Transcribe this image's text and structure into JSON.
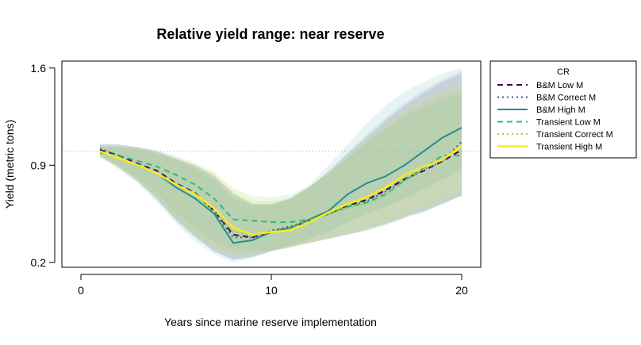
{
  "chart_data": {
    "type": "line",
    "title": "Relative yield range: near reserve",
    "xlabel": "Years since marine reserve implementation",
    "ylabel": "Yield (metric tons)",
    "xlim": [
      -1,
      21
    ],
    "ylim": [
      0.165,
      1.65
    ],
    "xticks": [
      0,
      10,
      20
    ],
    "xtick_labels": [
      "0",
      "10",
      "20"
    ],
    "yticks": [
      0.2,
      0.9,
      1.6
    ],
    "ytick_labels": [
      "0.2",
      "0.9",
      "1.6"
    ],
    "reference_line": {
      "y": 1.0,
      "style": "dotted",
      "color": "#aaaaaa"
    },
    "legend": {
      "title": "CR",
      "position": "outside-right"
    },
    "x": [
      1,
      2,
      3,
      4,
      5,
      6,
      7,
      8,
      9,
      10,
      11,
      12,
      13,
      14,
      15,
      16,
      17,
      18,
      19,
      20
    ],
    "series": [
      {
        "name": "B&M Low M",
        "color": "#440154",
        "dash": "dashed",
        "values": [
          1.01,
          0.97,
          0.91,
          0.86,
          0.77,
          0.7,
          0.57,
          0.4,
          0.38,
          0.42,
          0.45,
          0.5,
          0.55,
          0.61,
          0.65,
          0.72,
          0.8,
          0.86,
          0.93,
          1.01
        ],
        "band_lower": [
          0.97,
          0.88,
          0.78,
          0.65,
          0.5,
          0.38,
          0.28,
          0.22,
          0.24,
          0.28,
          0.31,
          0.34,
          0.37,
          0.4,
          0.43,
          0.47,
          0.52,
          0.56,
          0.62,
          0.68
        ],
        "band_upper": [
          1.05,
          1.05,
          1.03,
          1.0,
          0.95,
          0.9,
          0.83,
          0.7,
          0.62,
          0.62,
          0.66,
          0.74,
          0.85,
          0.98,
          1.1,
          1.22,
          1.33,
          1.42,
          1.5,
          1.56
        ]
      },
      {
        "name": "B&M Correct M",
        "color": "#31688e",
        "dash": "dotted",
        "values": [
          1.02,
          0.97,
          0.91,
          0.86,
          0.77,
          0.7,
          0.56,
          0.38,
          0.38,
          0.43,
          0.46,
          0.5,
          0.55,
          0.6,
          0.64,
          0.71,
          0.79,
          0.87,
          0.93,
          1.07
        ],
        "band_lower": [
          0.98,
          0.89,
          0.79,
          0.66,
          0.51,
          0.39,
          0.28,
          0.22,
          0.24,
          0.28,
          0.31,
          0.34,
          0.37,
          0.4,
          0.44,
          0.48,
          0.53,
          0.57,
          0.62,
          0.68
        ],
        "band_upper": [
          1.06,
          1.05,
          1.03,
          1.0,
          0.95,
          0.9,
          0.82,
          0.69,
          0.62,
          0.62,
          0.66,
          0.74,
          0.86,
          0.99,
          1.12,
          1.24,
          1.35,
          1.44,
          1.52,
          1.58
        ]
      },
      {
        "name": "B&M High M",
        "color": "#21908c",
        "dash": "solid",
        "values": [
          1.0,
          0.95,
          0.9,
          0.84,
          0.74,
          0.66,
          0.55,
          0.34,
          0.36,
          0.42,
          0.45,
          0.51,
          0.57,
          0.69,
          0.77,
          0.82,
          0.9,
          1.0,
          1.1,
          1.17
        ],
        "band_lower": [
          0.96,
          0.87,
          0.77,
          0.63,
          0.48,
          0.35,
          0.26,
          0.2,
          0.23,
          0.28,
          0.32,
          0.37,
          0.42,
          0.49,
          0.55,
          0.6,
          0.66,
          0.73,
          0.8,
          0.86
        ],
        "band_upper": [
          1.04,
          1.03,
          1.02,
          0.99,
          0.94,
          0.88,
          0.8,
          0.66,
          0.61,
          0.61,
          0.66,
          0.76,
          0.9,
          1.05,
          1.2,
          1.33,
          1.43,
          1.5,
          1.56,
          1.6
        ]
      },
      {
        "name": "Transient Low M",
        "color": "#35b779",
        "dash": "dashed",
        "values": [
          0.99,
          0.97,
          0.93,
          0.89,
          0.83,
          0.76,
          0.66,
          0.51,
          0.5,
          0.49,
          0.49,
          0.51,
          0.55,
          0.6,
          0.63,
          0.69,
          0.79,
          0.88,
          0.97,
          0.97
        ],
        "band_lower": [
          0.95,
          0.89,
          0.81,
          0.7,
          0.56,
          0.44,
          0.35,
          0.29,
          0.28,
          0.29,
          0.31,
          0.34,
          0.37,
          0.4,
          0.43,
          0.47,
          0.52,
          0.57,
          0.63,
          0.68
        ],
        "band_upper": [
          1.03,
          1.04,
          1.03,
          1.01,
          0.97,
          0.92,
          0.85,
          0.73,
          0.68,
          0.67,
          0.69,
          0.75,
          0.84,
          0.95,
          1.06,
          1.16,
          1.25,
          1.32,
          1.38,
          1.42
        ]
      },
      {
        "name": "Transient Correct M",
        "color": "#8fd744",
        "dash": "dotted",
        "values": [
          1.0,
          0.95,
          0.89,
          0.84,
          0.76,
          0.69,
          0.57,
          0.42,
          0.4,
          0.43,
          0.46,
          0.5,
          0.55,
          0.59,
          0.62,
          0.68,
          0.79,
          0.87,
          0.94,
          1.04
        ],
        "band_lower": [
          0.96,
          0.88,
          0.78,
          0.66,
          0.51,
          0.39,
          0.3,
          0.25,
          0.26,
          0.29,
          0.32,
          0.35,
          0.38,
          0.41,
          0.44,
          0.48,
          0.53,
          0.58,
          0.63,
          0.69
        ],
        "band_upper": [
          1.04,
          1.03,
          1.01,
          0.98,
          0.94,
          0.89,
          0.82,
          0.7,
          0.64,
          0.64,
          0.67,
          0.74,
          0.84,
          0.95,
          1.06,
          1.17,
          1.27,
          1.35,
          1.41,
          1.46
        ]
      },
      {
        "name": "Transient High M",
        "color": "#fde725",
        "dash": "solid",
        "values": [
          1.0,
          0.95,
          0.9,
          0.84,
          0.76,
          0.69,
          0.59,
          0.45,
          0.4,
          0.42,
          0.43,
          0.49,
          0.56,
          0.62,
          0.67,
          0.74,
          0.83,
          0.89,
          0.94,
          1.04
        ],
        "band_lower": [
          0.96,
          0.88,
          0.79,
          0.67,
          0.52,
          0.4,
          0.31,
          0.26,
          0.26,
          0.28,
          0.3,
          0.34,
          0.37,
          0.41,
          0.45,
          0.49,
          0.55,
          0.6,
          0.66,
          0.72
        ],
        "band_upper": [
          1.04,
          1.04,
          1.03,
          1.0,
          0.96,
          0.91,
          0.85,
          0.74,
          0.66,
          0.64,
          0.66,
          0.74,
          0.85,
          0.97,
          1.09,
          1.2,
          1.3,
          1.38,
          1.44,
          1.49
        ]
      }
    ]
  }
}
